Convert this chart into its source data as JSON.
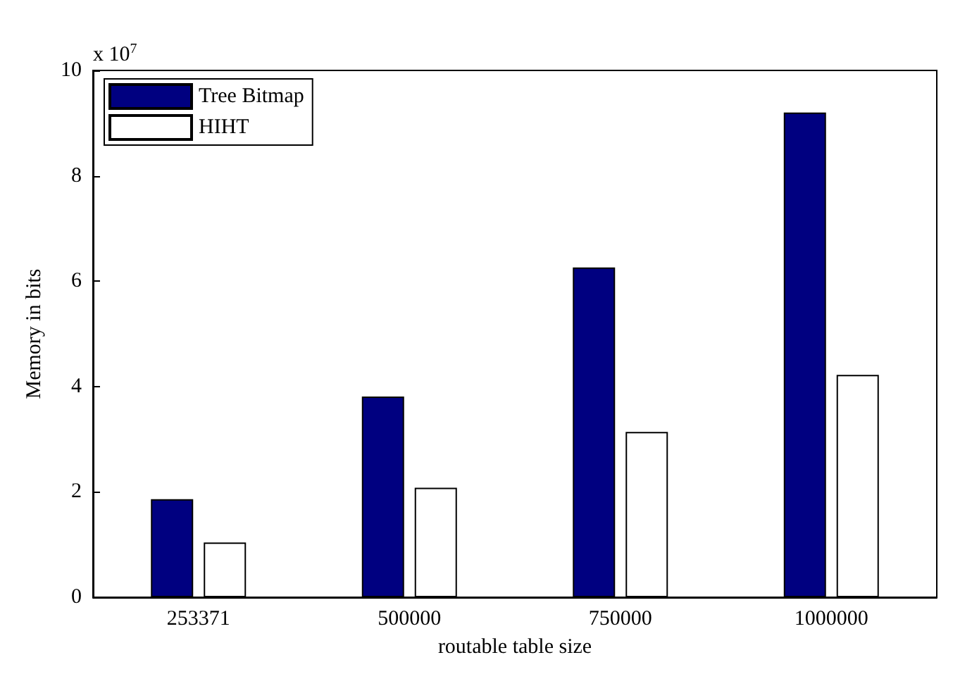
{
  "chart_data": {
    "type": "bar",
    "xlabel": "routable table size",
    "ylabel": "Memory in bits",
    "categories": [
      "253371",
      "500000",
      "750000",
      "1000000"
    ],
    "series": [
      {
        "name": "Tree Bitmap",
        "color": "#000080",
        "values": [
          1.86,
          3.81,
          6.26,
          9.2
        ]
      },
      {
        "name": "HIHT",
        "color": "#ffffff",
        "values": [
          1.04,
          2.08,
          3.14,
          4.22
        ]
      }
    ],
    "ylim": [
      0,
      10
    ],
    "yticks": [
      0,
      2,
      4,
      6,
      8,
      10
    ],
    "grid": false,
    "legend": "top left",
    "annotations": [
      "x 10$^{7}$"
    ]
  }
}
